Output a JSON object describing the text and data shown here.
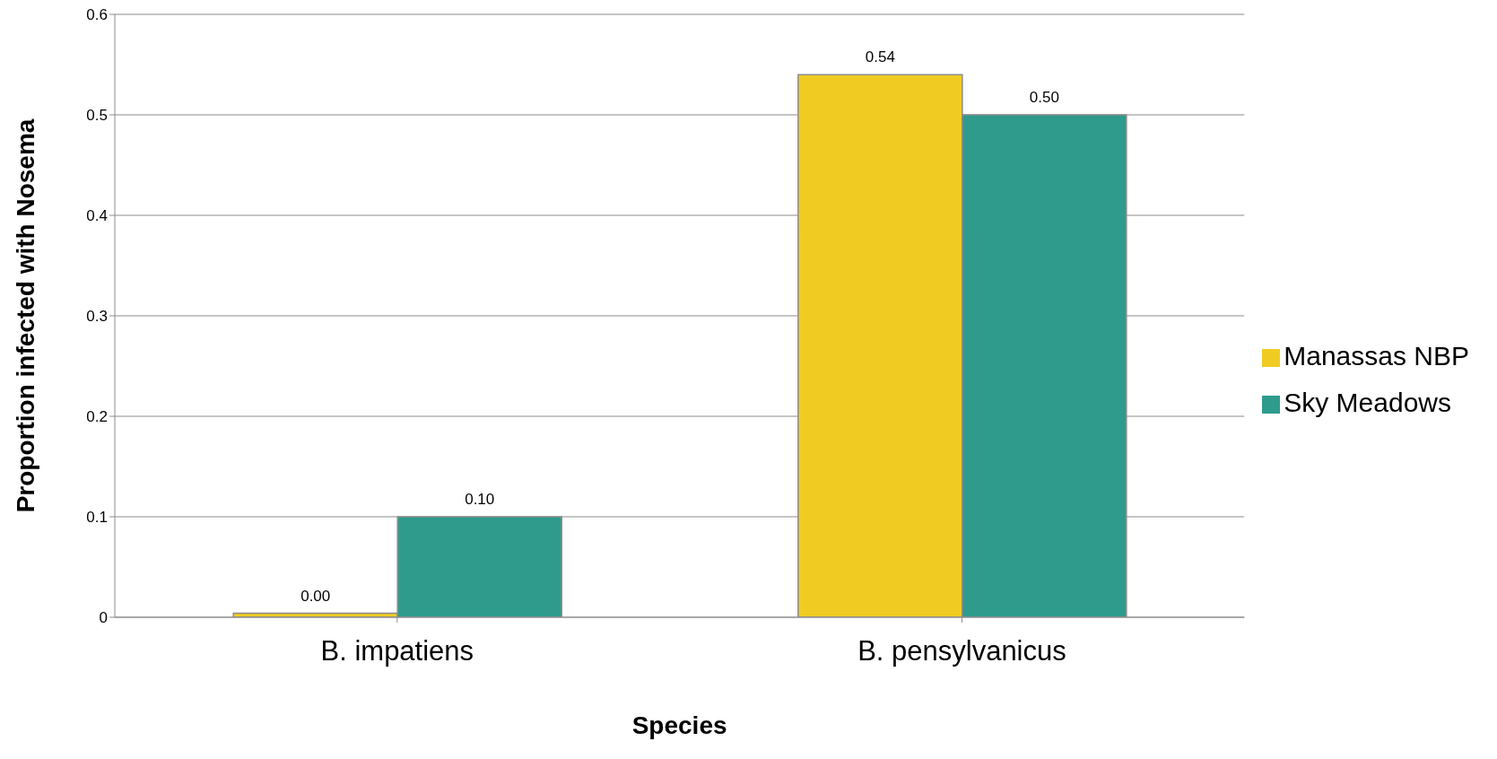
{
  "chart_data": {
    "type": "bar",
    "xlabel": "Species",
    "ylabel": "Proportion infected with Nosema",
    "categories": [
      "B. impatiens",
      "B. pensylvanicus"
    ],
    "series": [
      {
        "name": "Manassas NBP",
        "color": "#f0cc22",
        "values": [
          0.004,
          0.54
        ],
        "value_labels": [
          "0.00",
          "0.54"
        ]
      },
      {
        "name": "Sky Meadows",
        "color": "#2e9b8c",
        "values": [
          0.1,
          0.5
        ],
        "value_labels": [
          "0.10",
          "0.50"
        ]
      }
    ],
    "ylim": [
      0,
      0.6
    ],
    "yticks": [
      0,
      0.1,
      0.2,
      0.3,
      0.4,
      0.5,
      0.6
    ],
    "grid": "y",
    "legend": "right"
  }
}
